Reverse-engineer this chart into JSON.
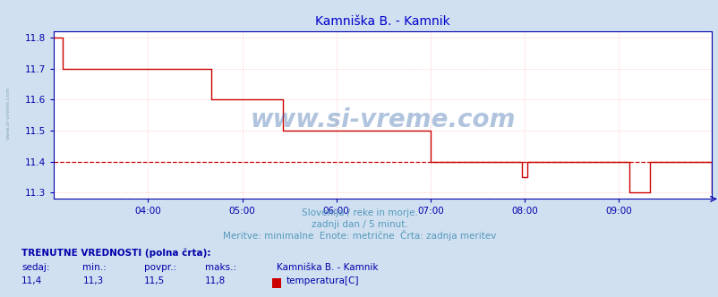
{
  "title": "Kamniška B. - Kamnik",
  "title_color": "#0000cc",
  "bg_color": "#d0e0f0",
  "plot_bg_color": "#ffffff",
  "grid_color": "#ffbbbb",
  "axis_color": "#0000aa",
  "line_color": "#cc0000",
  "dashed_line_color": "#cc0000",
  "dashed_line_value": 11.4,
  "ylim": [
    11.28,
    11.82
  ],
  "yticks": [
    11.3,
    11.4,
    11.5,
    11.6,
    11.7,
    11.8
  ],
  "xtick_labels": [
    "04:00",
    "05:00",
    "06:00",
    "07:00",
    "08:00",
    "09:00"
  ],
  "xtick_positions": [
    72,
    144,
    216,
    288,
    360,
    432
  ],
  "total_points": 504,
  "subtitle1": "Slovenija / reke in morje.",
  "subtitle2": "zadnji dan / 5 minut.",
  "subtitle3": "Meritve: minimalne  Enote: metrične  Črta: zadnja meritev",
  "subtitle_color": "#5599bb",
  "watermark": "www.si-vreme.com",
  "watermark_color": "#3366aa",
  "watermark_alpha": 0.38,
  "info_header": "TRENUTNE VREDNOSTI (polna črta):",
  "info_cols": [
    "sedaj:",
    "min.:",
    "povpr.:",
    "maks.:"
  ],
  "info_vals": [
    "11,4",
    "11,3",
    "11,5",
    "11,8"
  ],
  "legend_label": "temperatura[C]",
  "legend_station": "Kamniška B. - Kamnik",
  "legend_color": "#cc0000",
  "step_data": [
    [
      0,
      5,
      11.8
    ],
    [
      5,
      7,
      11.8
    ],
    [
      7,
      14,
      11.7
    ],
    [
      14,
      72,
      11.7
    ],
    [
      72,
      120,
      11.7
    ],
    [
      120,
      130,
      11.6
    ],
    [
      130,
      175,
      11.6
    ],
    [
      175,
      185,
      11.5
    ],
    [
      185,
      207,
      11.5
    ],
    [
      207,
      216,
      11.5
    ],
    [
      216,
      288,
      11.5
    ],
    [
      288,
      358,
      11.4
    ],
    [
      358,
      362,
      11.35
    ],
    [
      362,
      440,
      11.4
    ],
    [
      440,
      456,
      11.3
    ],
    [
      456,
      503,
      11.4
    ]
  ]
}
